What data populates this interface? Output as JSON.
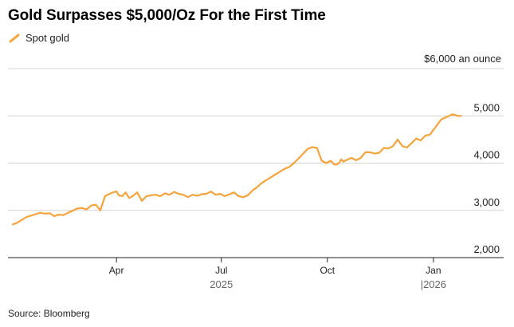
{
  "chart_data": {
    "type": "line",
    "title": "Gold Surpasses $5,000/Oz For the First Time",
    "unit_label": "$6,000 an ounce",
    "source": "Source: Bloomberg",
    "legend": [
      {
        "name": "Spot gold",
        "color": "#f5a33b"
      }
    ],
    "ylim": [
      2000,
      6000
    ],
    "yticks": [
      {
        "value": 6000,
        "label": ""
      },
      {
        "value": 5000,
        "label": "5,000"
      },
      {
        "value": 4000,
        "label": "4,000"
      },
      {
        "value": 3000,
        "label": "3,000"
      },
      {
        "value": 2000,
        "label": "2,000"
      }
    ],
    "xlim": [
      0,
      390
    ],
    "xticks": [
      {
        "x": 90,
        "label": "Apr"
      },
      {
        "x": 181,
        "label": "Jul"
      },
      {
        "x": 273,
        "label": "Oct"
      },
      {
        "x": 365,
        "label": "Jan"
      }
    ],
    "year_labels": [
      {
        "x": 181,
        "label": "2025"
      },
      {
        "x": 365,
        "label": "|2026"
      }
    ],
    "series": [
      {
        "name": "Spot gold",
        "color": "#f5a33b",
        "x": [
          0,
          4,
          8,
          12,
          16,
          20,
          24,
          28,
          32,
          36,
          40,
          44,
          48,
          52,
          56,
          60,
          64,
          68,
          72,
          76,
          80,
          84,
          87,
          90,
          92,
          95,
          98,
          101,
          104,
          108,
          112,
          116,
          120,
          124,
          128,
          132,
          136,
          140,
          144,
          148,
          152,
          156,
          160,
          164,
          168,
          172,
          176,
          180,
          184,
          188,
          192,
          196,
          200,
          204,
          208,
          212,
          216,
          220,
          224,
          228,
          232,
          236,
          240,
          244,
          248,
          252,
          256,
          260,
          264,
          268,
          272,
          276,
          279,
          281,
          283,
          285,
          287,
          290,
          294,
          298,
          302,
          306,
          310,
          314,
          318,
          322,
          326,
          330,
          334,
          338,
          342,
          346,
          350,
          354,
          358,
          362,
          364,
          368,
          372,
          375,
          378,
          381,
          384,
          386,
          389
        ],
        "values": [
          2700,
          2740,
          2800,
          2860,
          2890,
          2920,
          2950,
          2930,
          2940,
          2880,
          2910,
          2900,
          2950,
          2990,
          3040,
          3050,
          3020,
          3100,
          3120,
          3000,
          3300,
          3350,
          3380,
          3400,
          3320,
          3300,
          3380,
          3260,
          3300,
          3380,
          3200,
          3300,
          3320,
          3330,
          3300,
          3360,
          3330,
          3390,
          3350,
          3330,
          3280,
          3330,
          3310,
          3340,
          3350,
          3400,
          3330,
          3350,
          3300,
          3340,
          3380,
          3300,
          3280,
          3320,
          3420,
          3490,
          3580,
          3640,
          3700,
          3760,
          3820,
          3880,
          3920,
          4000,
          4100,
          4200,
          4300,
          4340,
          4320,
          4050,
          4000,
          4050,
          3970,
          3970,
          4000,
          4080,
          4030,
          4070,
          4110,
          4060,
          4110,
          4230,
          4230,
          4200,
          4220,
          4320,
          4310,
          4360,
          4500,
          4360,
          4330,
          4420,
          4520,
          4480,
          4580,
          4600,
          4670,
          4800,
          4930,
          4960,
          4990,
          5030,
          5020,
          5000,
          5000
        ]
      }
    ]
  }
}
